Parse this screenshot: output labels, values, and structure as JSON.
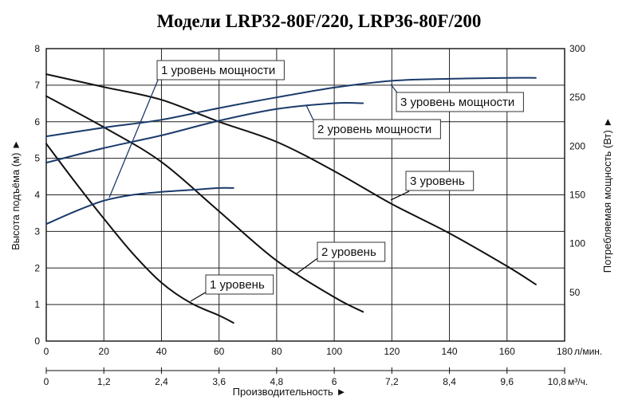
{
  "chart_data": {
    "type": "line",
    "title": "Модели LRP32-80F/220, LRP36-80F/200",
    "xlabel": "Производительность ►",
    "ylabel_left": "Высота подъёма (м) ►",
    "ylabel_right": "Потребляемая мощность (Вт) ►",
    "x_primary": {
      "unit": "л/мин.",
      "range": [
        0,
        180
      ],
      "ticks": [
        "0",
        "20",
        "40",
        "60",
        "80",
        "100",
        "120",
        "140",
        "160",
        "180"
      ]
    },
    "x_secondary": {
      "unit": "м³/ч.",
      "range": [
        0,
        10.8
      ],
      "ticks": [
        "0",
        "1,2",
        "2,4",
        "3,6",
        "4,8",
        "6",
        "7,2",
        "8,4",
        "9,6",
        "10,8"
      ]
    },
    "y_left": {
      "range": [
        0,
        8
      ],
      "ticks": [
        "0",
        "1",
        "2",
        "3",
        "4",
        "5",
        "6",
        "7",
        "8"
      ]
    },
    "y_right": {
      "range": [
        0,
        300
      ],
      "ticks": [
        "50",
        "100",
        "150",
        "200",
        "250",
        "300"
      ]
    },
    "grid": true,
    "series": [
      {
        "name": "1 уровень",
        "kind": "head",
        "color": "#111111",
        "x": [
          0,
          10,
          20,
          30,
          40,
          50,
          60,
          65
        ],
        "y": [
          5.4,
          4.35,
          3.35,
          2.4,
          1.6,
          1.05,
          0.7,
          0.5
        ]
      },
      {
        "name": "2 уровень",
        "kind": "head",
        "color": "#111111",
        "x": [
          0,
          20,
          40,
          60,
          80,
          100,
          110
        ],
        "y": [
          6.7,
          5.85,
          4.9,
          3.55,
          2.2,
          1.2,
          0.8
        ]
      },
      {
        "name": "3 уровень",
        "kind": "head",
        "color": "#111111",
        "x": [
          0,
          20,
          40,
          60,
          80,
          100,
          120,
          140,
          160,
          170
        ],
        "y": [
          7.3,
          6.95,
          6.6,
          6.0,
          5.45,
          4.65,
          3.75,
          2.95,
          2.05,
          1.55
        ]
      },
      {
        "name": "1 уровень мощности",
        "kind": "power",
        "color": "#1a3b6b",
        "x": [
          0,
          10,
          20,
          30,
          40,
          50,
          60,
          65
        ],
        "y": [
          120,
          133,
          144,
          150,
          153,
          155,
          157,
          157
        ]
      },
      {
        "name": "2 уровень мощности",
        "kind": "power",
        "color": "#1a3b6b",
        "x": [
          0,
          20,
          40,
          60,
          80,
          100,
          110
        ],
        "y": [
          183,
          198,
          211,
          226,
          238,
          244,
          244
        ]
      },
      {
        "name": "3 уровень мощности",
        "kind": "power",
        "color": "#1a3b6b",
        "x": [
          0,
          20,
          40,
          60,
          80,
          100,
          120,
          140,
          160,
          170
        ],
        "y": [
          210,
          219,
          227,
          239,
          250,
          260,
          267,
          269,
          270,
          270
        ]
      }
    ],
    "callouts": [
      {
        "text": "1 уровень мощности",
        "series": "1 уровень мощности",
        "color": "#1a3b6b"
      },
      {
        "text": "3 уровень мощности",
        "series": "3 уровень мощности",
        "color": "#1a3b6b"
      },
      {
        "text": "2 уровень мощности",
        "series": "2 уровень мощности",
        "color": "#1a3b6b"
      },
      {
        "text": "3 уровень",
        "series": "3 уровень",
        "color": "#111111"
      },
      {
        "text": "2 уровень",
        "series": "2 уровень",
        "color": "#111111"
      },
      {
        "text": "1 уровень",
        "series": "1 уровень",
        "color": "#111111"
      }
    ]
  }
}
